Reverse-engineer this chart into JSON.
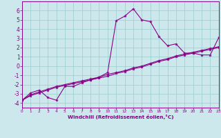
{
  "xlabel": "Windchill (Refroidissement éolien,°C)",
  "background_color": "#cce8ec",
  "line_color": "#880088",
  "grid_color": "#99cccc",
  "xlim": [
    0,
    23
  ],
  "ylim": [
    -4.5,
    7.0
  ],
  "xtick_vals": [
    0,
    1,
    2,
    3,
    4,
    5,
    6,
    7,
    8,
    9,
    10,
    11,
    12,
    13,
    14,
    15,
    16,
    17,
    18,
    19,
    20,
    21,
    22,
    23
  ],
  "ytick_vals": [
    -4,
    -3,
    -2,
    -1,
    0,
    1,
    2,
    3,
    4,
    5,
    6
  ],
  "line1": {
    "x": [
      0,
      1,
      2,
      3,
      4,
      5,
      6,
      7,
      8,
      9,
      10,
      11,
      12,
      13,
      14,
      15,
      16,
      17,
      18,
      19,
      20,
      21,
      22,
      23
    ],
    "y": [
      -3.7,
      -3.1,
      -2.8,
      -2.5,
      -2.2,
      -2.0,
      -1.8,
      -1.6,
      -1.4,
      -1.2,
      -0.9,
      -0.7,
      -0.5,
      -0.2,
      0.0,
      0.3,
      0.6,
      0.8,
      1.1,
      1.3,
      1.5,
      1.7,
      1.9,
      2.1
    ]
  },
  "line2": {
    "x": [
      0,
      1,
      2,
      3,
      4,
      5,
      6,
      7,
      8,
      9,
      10,
      11,
      12,
      13,
      14,
      15,
      16,
      17,
      18,
      19,
      20,
      21,
      22,
      23
    ],
    "y": [
      -3.7,
      -3.2,
      -2.9,
      -2.6,
      -2.3,
      -2.1,
      -1.9,
      -1.7,
      -1.5,
      -1.3,
      -1.1,
      -0.8,
      -0.6,
      -0.3,
      -0.1,
      0.2,
      0.5,
      0.7,
      1.0,
      1.2,
      1.4,
      1.6,
      1.8,
      2.0
    ]
  },
  "line3": {
    "x": [
      0,
      1,
      2,
      3,
      4,
      5,
      6,
      7,
      8,
      9,
      10,
      11,
      12,
      13,
      14,
      15,
      16,
      17,
      18,
      19,
      20,
      21,
      22,
      23
    ],
    "y": [
      -3.7,
      -2.9,
      -2.6,
      -3.4,
      -3.7,
      -2.2,
      -2.2,
      -1.8,
      -1.5,
      -1.2,
      -0.7,
      4.9,
      5.4,
      6.2,
      5.0,
      4.8,
      3.2,
      2.2,
      2.4,
      1.4,
      1.4,
      1.2,
      1.2,
      3.1
    ]
  }
}
